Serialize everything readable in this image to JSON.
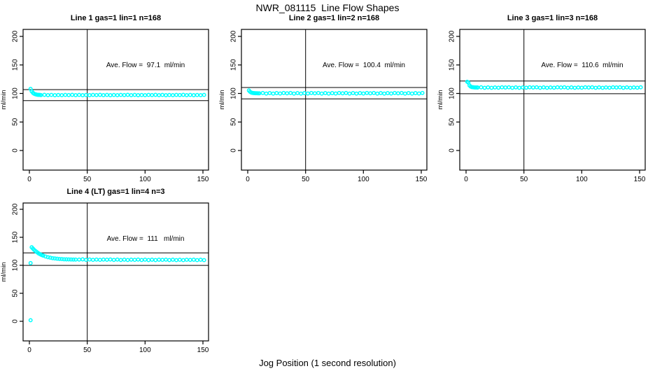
{
  "page": {
    "title": "NWR_081115  Line Flow Shapes",
    "xlabel": "Jog Position (1 second resolution)",
    "background_color": "#ffffff",
    "point_color": "#00ffff",
    "line_color": "#000000",
    "text_color": "#000000"
  },
  "chart_data": [
    {
      "type": "scatter",
      "title": "Line 1 gas=1 lin=1 n=168",
      "annotation": "Ave. Flow =  97.1  ml/min",
      "ave_flow_ml_min": 97.1,
      "n": 168,
      "ylabel": "ml/min",
      "xticks": [
        0,
        50,
        100,
        150
      ],
      "yticks": [
        0,
        50,
        100,
        150,
        200
      ],
      "xlim": [
        -5.4,
        154.8
      ],
      "ylim": [
        -34,
        212
      ],
      "grid": false,
      "vline_x": 50,
      "hlines": [
        106.8,
        87.4
      ],
      "points": [
        [
          1,
          108
        ],
        [
          2,
          103.8
        ],
        [
          3,
          101.2
        ],
        [
          4,
          99.6
        ],
        [
          5,
          98.7
        ],
        [
          6,
          98.1
        ],
        [
          7,
          97.7
        ],
        [
          8,
          97.5
        ],
        [
          9,
          97.4
        ],
        [
          10,
          97.2
        ],
        [
          13,
          97.5
        ],
        [
          16,
          97.0
        ],
        [
          19,
          97.4
        ],
        [
          22,
          96.9
        ],
        [
          25,
          97.3
        ],
        [
          28,
          97.0
        ],
        [
          31,
          97.4
        ],
        [
          34,
          97.2
        ],
        [
          37,
          97.5
        ],
        [
          40,
          97.0
        ],
        [
          43,
          97.4
        ],
        [
          46,
          96.9
        ],
        [
          49,
          97.3
        ],
        [
          52,
          97.0
        ],
        [
          55,
          97.4
        ],
        [
          58,
          97.2
        ],
        [
          61,
          97.5
        ],
        [
          64,
          97.0
        ],
        [
          67,
          97.4
        ],
        [
          70,
          96.9
        ],
        [
          73,
          97.3
        ],
        [
          76,
          97.0
        ],
        [
          79,
          97.4
        ],
        [
          82,
          97.2
        ],
        [
          85,
          97.5
        ],
        [
          88,
          97.0
        ],
        [
          91,
          97.4
        ],
        [
          94,
          96.9
        ],
        [
          97,
          97.3
        ],
        [
          100,
          97.0
        ],
        [
          103,
          97.4
        ],
        [
          106,
          97.2
        ],
        [
          109,
          97.5
        ],
        [
          112,
          97.0
        ],
        [
          115,
          97.4
        ],
        [
          118,
          96.9
        ],
        [
          121,
          97.3
        ],
        [
          124,
          97.0
        ],
        [
          127,
          97.4
        ],
        [
          130,
          97.2
        ],
        [
          133,
          97.5
        ],
        [
          136,
          97.0
        ],
        [
          139,
          97.4
        ],
        [
          142,
          96.9
        ],
        [
          145,
          97.3
        ],
        [
          148,
          97.0
        ],
        [
          151,
          97.4
        ]
      ]
    },
    {
      "type": "scatter",
      "title": "Line 2 gas=1 lin=2 n=168",
      "annotation": "Ave. Flow =  100.4  ml/min",
      "ave_flow_ml_min": 100.4,
      "n": 168,
      "ylabel": "ml/min",
      "xticks": [
        0,
        50,
        100,
        150
      ],
      "yticks": [
        0,
        50,
        100,
        150,
        200
      ],
      "xlim": [
        -5.4,
        154.8
      ],
      "ylim": [
        -34,
        212
      ],
      "grid": false,
      "vline_x": 50,
      "hlines": [
        110.4,
        90.4
      ],
      "points": [
        [
          1,
          105.3
        ],
        [
          2,
          102.9
        ],
        [
          3,
          101.6
        ],
        [
          4,
          101.0
        ],
        [
          5,
          100.7
        ],
        [
          6,
          100.5
        ],
        [
          7,
          100.4
        ],
        [
          8,
          100.4
        ],
        [
          9,
          100.3
        ],
        [
          10,
          100.3
        ],
        [
          13,
          100.9
        ],
        [
          16,
          99.8
        ],
        [
          19,
          100.7
        ],
        [
          22,
          99.7
        ],
        [
          25,
          100.6
        ],
        [
          28,
          99.9
        ],
        [
          31,
          100.8
        ],
        [
          34,
          100.3
        ],
        [
          37,
          100.9
        ],
        [
          40,
          99.8
        ],
        [
          43,
          100.7
        ],
        [
          46,
          99.7
        ],
        [
          49,
          100.6
        ],
        [
          52,
          99.9
        ],
        [
          55,
          100.8
        ],
        [
          58,
          100.3
        ],
        [
          61,
          100.9
        ],
        [
          64,
          99.8
        ],
        [
          67,
          100.7
        ],
        [
          70,
          99.7
        ],
        [
          73,
          100.6
        ],
        [
          76,
          99.9
        ],
        [
          79,
          100.8
        ],
        [
          82,
          100.3
        ],
        [
          85,
          100.9
        ],
        [
          88,
          99.8
        ],
        [
          91,
          100.7
        ],
        [
          94,
          99.7
        ],
        [
          97,
          100.6
        ],
        [
          100,
          99.9
        ],
        [
          103,
          100.8
        ],
        [
          106,
          100.3
        ],
        [
          109,
          100.9
        ],
        [
          112,
          99.8
        ],
        [
          115,
          100.7
        ],
        [
          118,
          99.7
        ],
        [
          121,
          100.6
        ],
        [
          124,
          99.9
        ],
        [
          127,
          100.8
        ],
        [
          130,
          100.3
        ],
        [
          133,
          100.9
        ],
        [
          136,
          99.8
        ],
        [
          139,
          100.7
        ],
        [
          142,
          99.7
        ],
        [
          145,
          100.6
        ],
        [
          148,
          99.9
        ],
        [
          151,
          100.8
        ]
      ]
    },
    {
      "type": "scatter",
      "title": "Line 3 gas=1 lin=3 n=168",
      "annotation": "Ave. Flow =  110.6  ml/min",
      "ave_flow_ml_min": 110.6,
      "n": 168,
      "ylabel": "ml/min",
      "xticks": [
        0,
        50,
        100,
        150
      ],
      "yticks": [
        0,
        50,
        100,
        150,
        200
      ],
      "xlim": [
        -5.4,
        154.8
      ],
      "ylim": [
        -34,
        212
      ],
      "grid": false,
      "vline_x": 50,
      "hlines": [
        121.7,
        99.5
      ],
      "points": [
        [
          1,
          120.5
        ],
        [
          2,
          119.0
        ],
        [
          3,
          114.0
        ],
        [
          4,
          112.0
        ],
        [
          5,
          111.2
        ],
        [
          6,
          110.9
        ],
        [
          7,
          110.7
        ],
        [
          8,
          110.6
        ],
        [
          9,
          110.5
        ],
        [
          10,
          110.4
        ],
        [
          13,
          110.8
        ],
        [
          16,
          110.0
        ],
        [
          19,
          110.7
        ],
        [
          22,
          110.0
        ],
        [
          25,
          110.6
        ],
        [
          28,
          110.1
        ],
        [
          31,
          110.8
        ],
        [
          34,
          110.4
        ],
        [
          37,
          110.8
        ],
        [
          40,
          110.0
        ],
        [
          43,
          110.7
        ],
        [
          46,
          110.0
        ],
        [
          49,
          110.6
        ],
        [
          52,
          110.1
        ],
        [
          55,
          110.8
        ],
        [
          58,
          110.4
        ],
        [
          61,
          110.8
        ],
        [
          64,
          110.0
        ],
        [
          67,
          110.7
        ],
        [
          70,
          110.0
        ],
        [
          73,
          110.6
        ],
        [
          76,
          110.1
        ],
        [
          79,
          110.8
        ],
        [
          82,
          110.4
        ],
        [
          85,
          110.8
        ],
        [
          88,
          110.0
        ],
        [
          91,
          110.7
        ],
        [
          94,
          110.0
        ],
        [
          97,
          110.6
        ],
        [
          100,
          110.1
        ],
        [
          103,
          110.8
        ],
        [
          106,
          110.4
        ],
        [
          109,
          110.8
        ],
        [
          112,
          110.0
        ],
        [
          115,
          110.7
        ],
        [
          118,
          110.0
        ],
        [
          121,
          110.6
        ],
        [
          124,
          110.1
        ],
        [
          127,
          110.8
        ],
        [
          130,
          110.4
        ],
        [
          133,
          110.8
        ],
        [
          136,
          110.0
        ],
        [
          139,
          110.7
        ],
        [
          142,
          110.0
        ],
        [
          145,
          110.6
        ],
        [
          148,
          110.1
        ],
        [
          151,
          110.8
        ]
      ]
    },
    {
      "type": "scatter",
      "title": "Line 4 (LT) gas=1 lin=4 n=3",
      "annotation": "Ave. Flow =  111   ml/min",
      "ave_flow_ml_min": 111,
      "n": 3,
      "ylabel": "ml/min",
      "xticks": [
        0,
        50,
        100,
        150
      ],
      "yticks": [
        0,
        50,
        100,
        150,
        200
      ],
      "xlim": [
        -5.4,
        154.8
      ],
      "ylim": [
        -34,
        212
      ],
      "grid": false,
      "vline_x": 50,
      "hlines": [
        122.1,
        99.9
      ],
      "points": [
        [
          1,
          2
        ],
        [
          1,
          104
        ],
        [
          2,
          132.3
        ],
        [
          3,
          129.9
        ],
        [
          4,
          127.8
        ],
        [
          5,
          125.9
        ],
        [
          6,
          124.2
        ],
        [
          7,
          122.7
        ],
        [
          8,
          121.3
        ],
        [
          9,
          120.1
        ],
        [
          10,
          119.0
        ],
        [
          11,
          118.1
        ],
        [
          12,
          117.2
        ],
        [
          14,
          115.7
        ],
        [
          16,
          114.5
        ],
        [
          18,
          113.6
        ],
        [
          20,
          112.8
        ],
        [
          22,
          112.2
        ],
        [
          24,
          111.8
        ],
        [
          26,
          111.4
        ],
        [
          28,
          111.1
        ],
        [
          30,
          110.8
        ],
        [
          32,
          110.6
        ],
        [
          34,
          110.5
        ],
        [
          36,
          110.4
        ],
        [
          38,
          110.3
        ],
        [
          40,
          110.2
        ],
        [
          43,
          110.2
        ],
        [
          46,
          110.6
        ],
        [
          49,
          109.8
        ],
        [
          52,
          110.4
        ],
        [
          55,
          109.7
        ],
        [
          58,
          110.3
        ],
        [
          61,
          109.7
        ],
        [
          64,
          110.3
        ],
        [
          67,
          110.0
        ],
        [
          70,
          110.4
        ],
        [
          73,
          109.6
        ],
        [
          76,
          110.3
        ],
        [
          79,
          109.5
        ],
        [
          82,
          110.1
        ],
        [
          85,
          109.5
        ],
        [
          88,
          110.1
        ],
        [
          91,
          109.8
        ],
        [
          94,
          110.2
        ],
        [
          97,
          109.5
        ],
        [
          100,
          110.1
        ],
        [
          103,
          109.4
        ],
        [
          106,
          110.0
        ],
        [
          109,
          109.4
        ],
        [
          112,
          110.0
        ],
        [
          115,
          109.7
        ],
        [
          118,
          110.1
        ],
        [
          121,
          109.4
        ],
        [
          124,
          110.0
        ],
        [
          127,
          109.3
        ],
        [
          130,
          109.9
        ],
        [
          133,
          109.3
        ],
        [
          136,
          109.9
        ],
        [
          139,
          109.6
        ],
        [
          142,
          110.0
        ],
        [
          145,
          109.3
        ],
        [
          148,
          109.9
        ],
        [
          151,
          109.2
        ]
      ]
    }
  ]
}
